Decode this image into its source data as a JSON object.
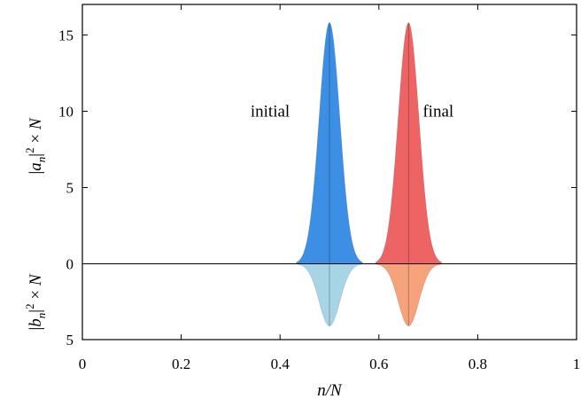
{
  "chart_data": {
    "type": "area",
    "xlabel": "n/N",
    "ylabel_top": "|a_n|^2 × N",
    "ylabel_bottom": "|b_n|^2 × N",
    "xlim": [
      0,
      1
    ],
    "ylim_top": [
      0,
      17
    ],
    "ylim_bottom": [
      0,
      5
    ],
    "xticks": [
      "0",
      "0.2",
      "0.4",
      "0.6",
      "0.8",
      "1"
    ],
    "yticks_top": [
      "0",
      "5",
      "10",
      "15"
    ],
    "yticks_bottom": [
      "5"
    ],
    "grid": false,
    "series": [
      {
        "name": "initial",
        "panel": "top",
        "center": 0.5,
        "peak": 15.8,
        "width": 0.021,
        "color": "#3d8fe6",
        "x": [
          0.44,
          0.46,
          0.48,
          0.5,
          0.52,
          0.54,
          0.56
        ],
        "y": [
          0.3,
          2.7,
          10.7,
          15.8,
          10.7,
          2.7,
          0.3
        ]
      },
      {
        "name": "final",
        "panel": "top",
        "center": 0.66,
        "peak": 15.8,
        "width": 0.021,
        "color": "#ee6464",
        "x": [
          0.6,
          0.62,
          0.64,
          0.66,
          0.68,
          0.7,
          0.72
        ],
        "y": [
          0.3,
          2.7,
          10.7,
          15.8,
          10.7,
          2.7,
          0.3
        ]
      },
      {
        "panel": "bottom",
        "center": 0.5,
        "peak": 4.1,
        "width": 0.021,
        "color": "#a7d5e6",
        "x": [
          0.44,
          0.46,
          0.48,
          0.5,
          0.52,
          0.54,
          0.56
        ],
        "y": [
          0.1,
          0.7,
          2.8,
          4.1,
          2.8,
          0.7,
          0.1
        ]
      },
      {
        "panel": "bottom",
        "center": 0.66,
        "peak": 4.1,
        "width": 0.021,
        "color": "#f6a27a",
        "x": [
          0.6,
          0.62,
          0.64,
          0.66,
          0.68,
          0.7,
          0.72
        ],
        "y": [
          0.1,
          0.7,
          2.8,
          4.1,
          2.8,
          0.7,
          0.1
        ]
      }
    ],
    "annotations": [
      {
        "text": "initial",
        "x": 0.38,
        "y": 10
      },
      {
        "text": "final",
        "x": 0.72,
        "y": 10
      }
    ]
  }
}
